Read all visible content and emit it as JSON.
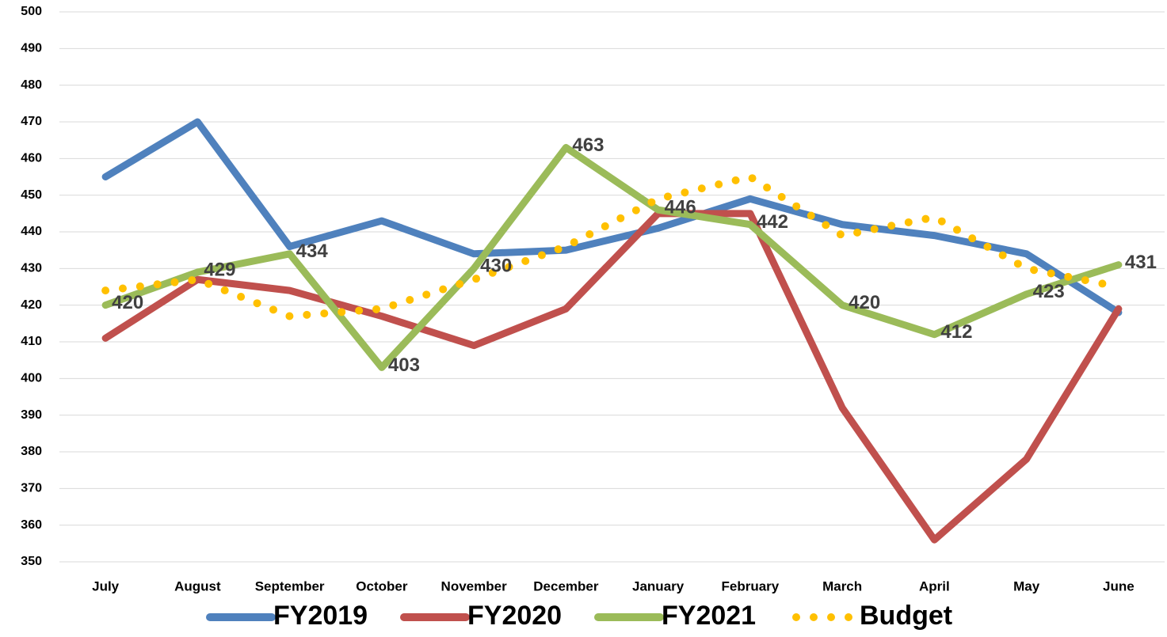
{
  "chart_data": {
    "type": "line",
    "categories": [
      "July",
      "August",
      "September",
      "October",
      "November",
      "December",
      "January",
      "February",
      "March",
      "April",
      "May",
      "June"
    ],
    "series": [
      {
        "name": "FY2019",
        "color": "#4f81bd",
        "values": [
          455,
          470,
          436,
          443,
          434,
          435,
          441,
          449,
          442,
          439,
          434,
          418
        ]
      },
      {
        "name": "FY2020",
        "color": "#c0504d",
        "values": [
          411,
          427,
          424,
          417,
          409,
          419,
          445,
          445,
          392,
          356,
          378,
          419
        ]
      },
      {
        "name": "FY2021",
        "color": "#9bbb59",
        "values": [
          420,
          429,
          434,
          403,
          430,
          463,
          446,
          442,
          420,
          412,
          423,
          431
        ],
        "labels": true
      },
      {
        "name": "Budget",
        "color": "#ffc000",
        "values": [
          424,
          427,
          417,
          419,
          427,
          436,
          449,
          455,
          439,
          444,
          430,
          425
        ],
        "dotted": true
      }
    ],
    "ylim": [
      350,
      500
    ],
    "yticks": [
      350,
      360,
      370,
      380,
      390,
      400,
      410,
      420,
      430,
      440,
      450,
      460,
      470,
      480,
      490,
      500
    ],
    "grid": true,
    "legend": "bottom"
  }
}
